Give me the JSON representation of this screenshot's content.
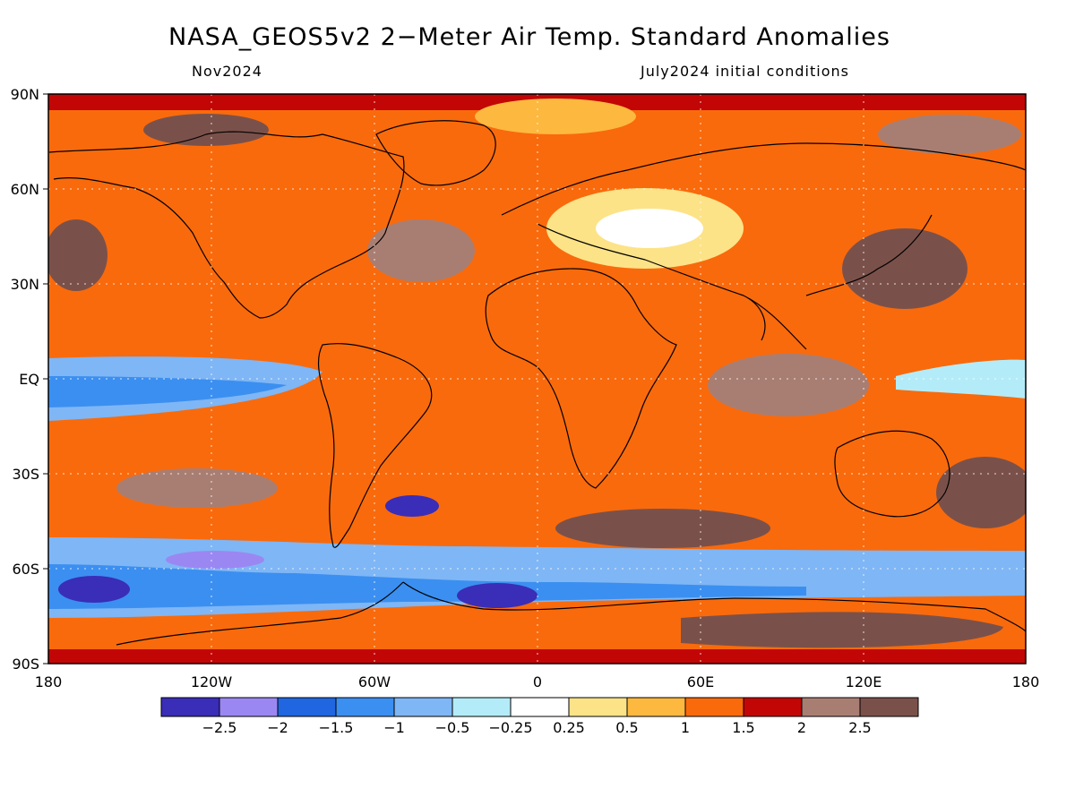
{
  "title": "NASA_GEOS5v2 2−Meter Air Temp. Standard Anomalies",
  "subtitle_left": "Nov2024",
  "subtitle_right": "July2024 initial conditions",
  "lat_labels": [
    "90N",
    "60N",
    "30N",
    "EQ",
    "30S",
    "60S",
    "90S"
  ],
  "lon_labels": [
    "180",
    "120W",
    "60W",
    "0",
    "60E",
    "120E",
    "180"
  ],
  "colorbar": {
    "colors": [
      "#3a2db8",
      "#9b87f2",
      "#1f66e0",
      "#3b8ff0",
      "#7fb6f5",
      "#b3ecf8",
      "#ffffff",
      "#fde387",
      "#fdb83f",
      "#f96a0c",
      "#c20606",
      "#a97e72",
      "#7a514a"
    ],
    "labels": [
      "−2.5",
      "−2",
      "−1.5",
      "−1",
      "−0.5",
      "−0.25",
      "0.25",
      "0.5",
      "1",
      "1.5",
      "2",
      "2.5"
    ]
  }
}
